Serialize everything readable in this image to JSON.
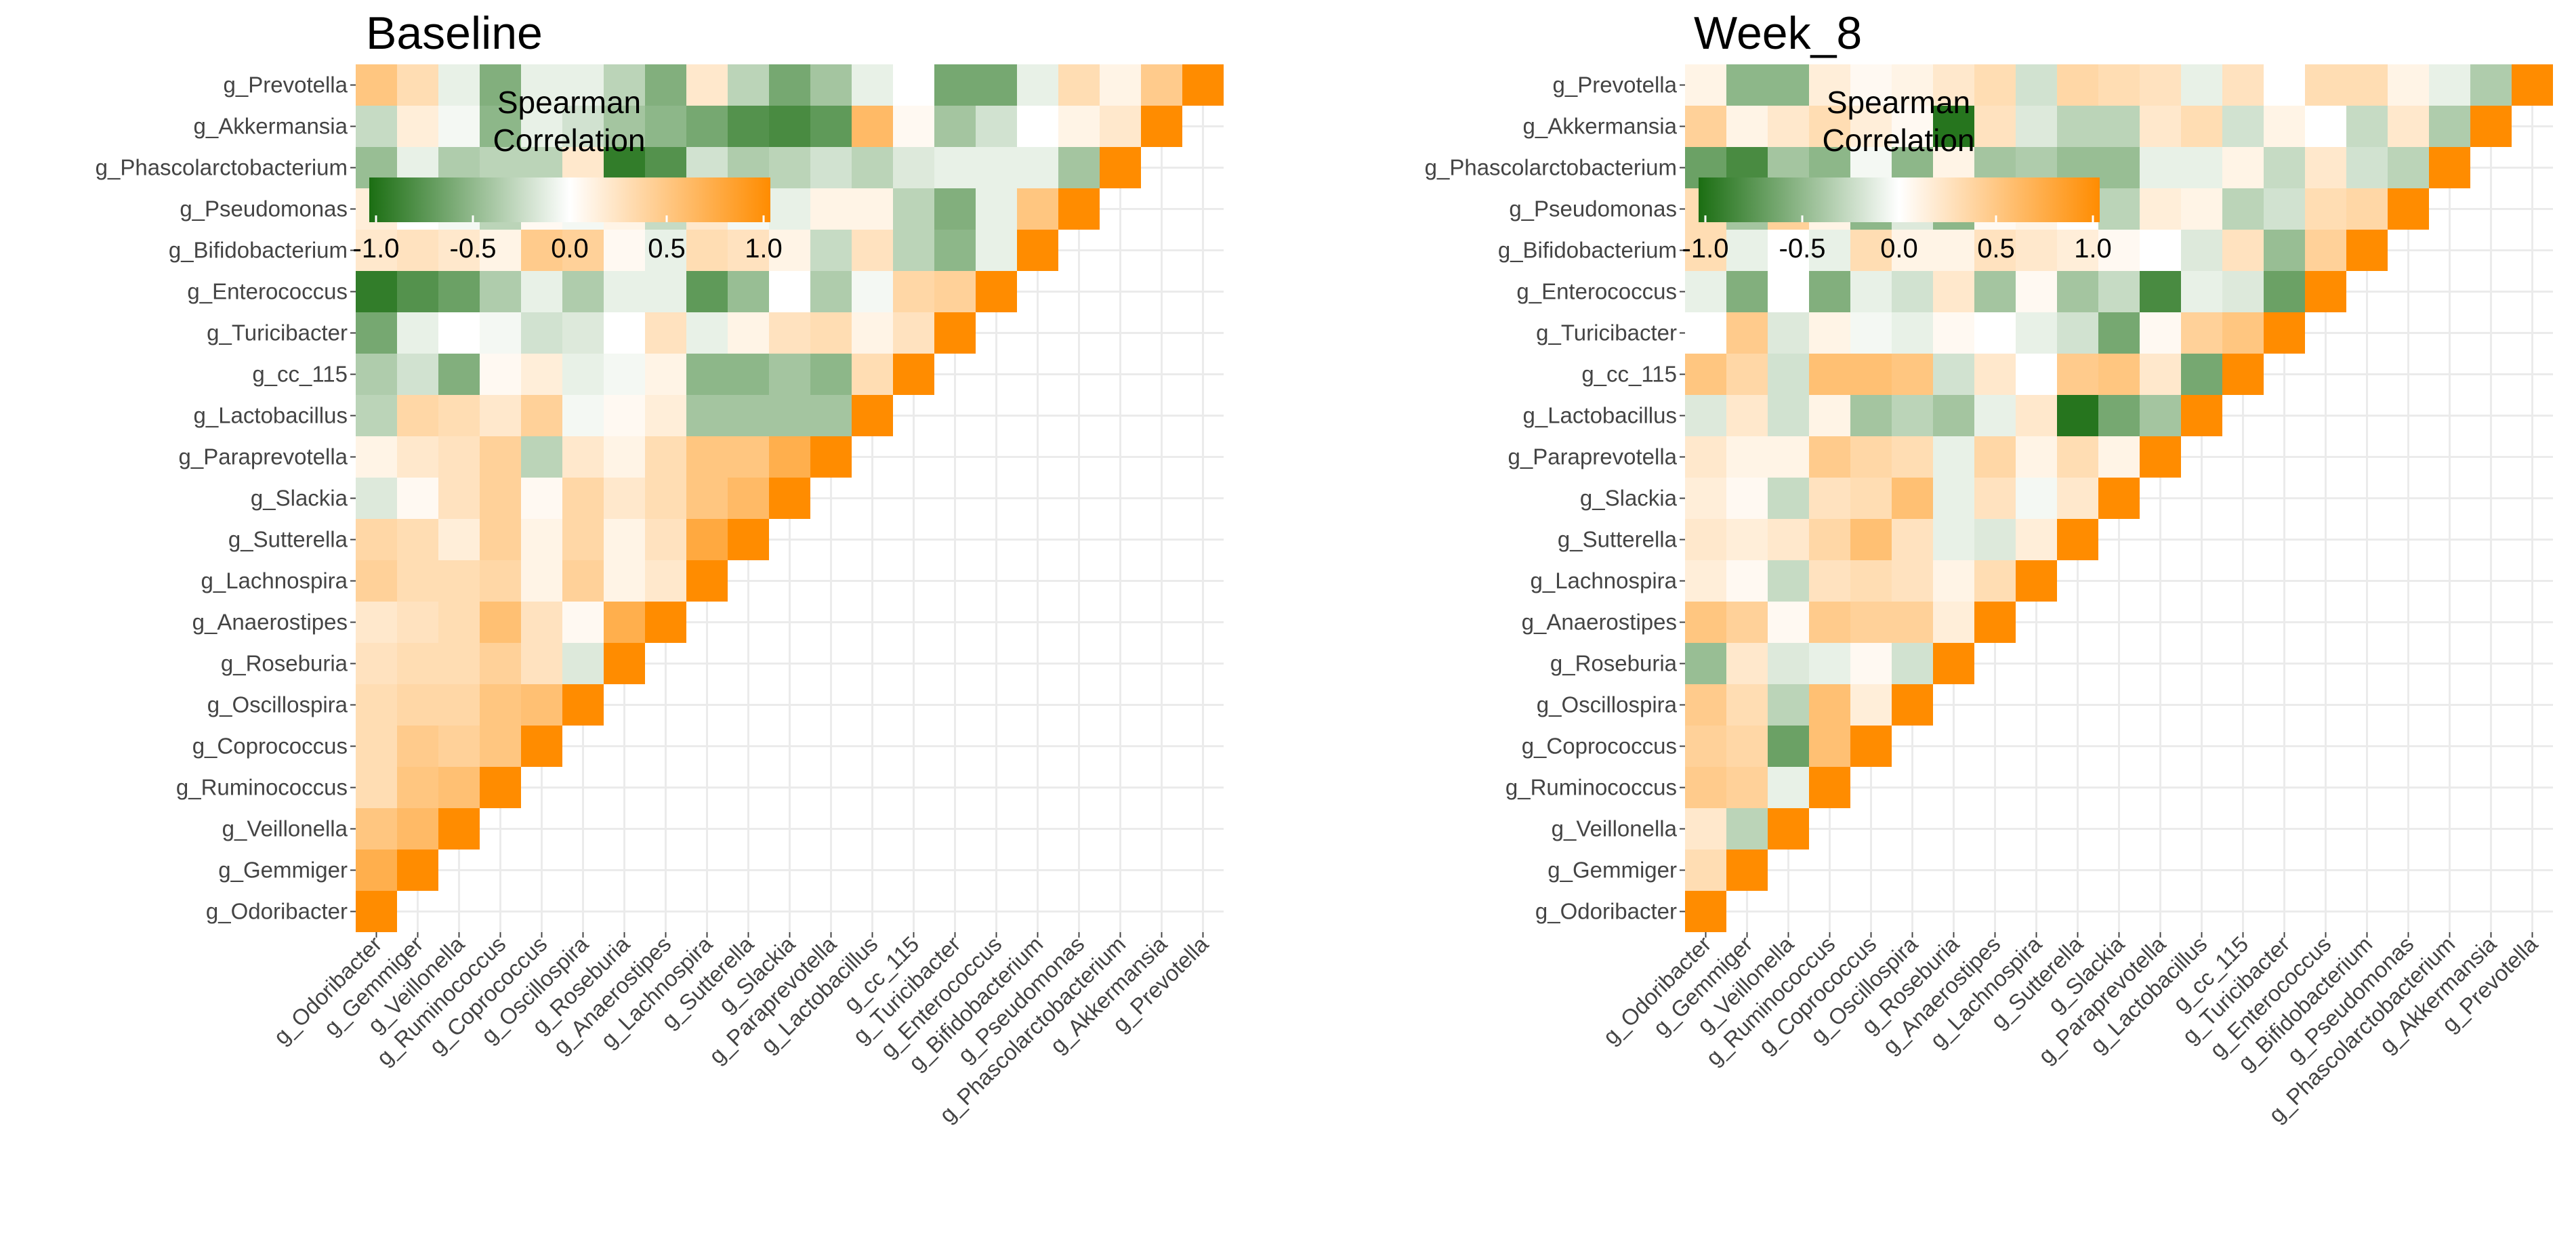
{
  "chart_data": [
    {
      "type": "heatmap",
      "title": "Baseline",
      "legend": {
        "title_lines": [
          "Spearman",
          "Correlation"
        ],
        "ticks": [
          "-1.0",
          "-0.5",
          "0.0",
          "0.5",
          "1.0"
        ],
        "range": [
          -1,
          1
        ],
        "colors": {
          "low": "#1b6e12",
          "mid": "#ffffff",
          "high": "#ff8c00"
        }
      },
      "rows_top_to_bottom": [
        "g_Prevotella",
        "g_Akkermansia",
        "g_Phascolarctobacterium",
        "g_Pseudomonas",
        "g_Bifidobacterium",
        "g_Enterococcus",
        "g_Turicibacter",
        "g_cc_115",
        "g_Lactobacillus",
        "g_Paraprevotella",
        "g_Slackia",
        "g_Sutterella",
        "g_Lachnospira",
        "g_Anaerostipes",
        "g_Roseburia",
        "g_Oscillospira",
        "g_Coprococcus",
        "g_Ruminococcus",
        "g_Veillonella",
        "g_Gemmiger",
        "g_Odoribacter"
      ],
      "columns": [
        "g_Odoribacter",
        "g_Gemmiger",
        "g_Veillonella",
        "g_Ruminococcus",
        "g_Coprococcus",
        "g_Oscillospira",
        "g_Roseburia",
        "g_Anaerostipes",
        "g_Lachnospira",
        "g_Sutterella",
        "g_Slackia",
        "g_Paraprevotella",
        "g_Lactobacillus",
        "g_cc_115",
        "g_Turicibacter",
        "g_Enterococcus",
        "g_Bifidobacterium",
        "g_Pseudomonas",
        "g_Phascolarctobacterium",
        "g_Akkermansia",
        "g_Prevotella"
      ],
      "values_lower_triangle": [
        [
          1.0
        ],
        [
          0.7,
          1.0
        ],
        [
          0.5,
          0.6,
          1.0
        ],
        [
          0.3,
          0.5,
          0.55,
          1.0
        ],
        [
          0.3,
          0.45,
          0.4,
          0.5,
          1.0
        ],
        [
          0.3,
          0.35,
          0.35,
          0.5,
          0.55,
          1.0
        ],
        [
          0.25,
          0.3,
          0.3,
          0.4,
          0.25,
          -0.15,
          1.0
        ],
        [
          0.2,
          0.25,
          0.3,
          0.55,
          0.25,
          0.05,
          0.7,
          1.0
        ],
        [
          0.4,
          0.3,
          0.3,
          0.35,
          0.1,
          0.4,
          0.1,
          0.2,
          1.0
        ],
        [
          0.35,
          0.3,
          0.15,
          0.4,
          0.1,
          0.35,
          0.1,
          0.25,
          0.75,
          1.0
        ],
        [
          -0.15,
          0.05,
          0.25,
          0.4,
          0.05,
          0.35,
          0.2,
          0.3,
          0.5,
          0.6,
          1.0
        ],
        [
          0.1,
          0.2,
          0.25,
          0.4,
          -0.3,
          0.2,
          0.1,
          0.3,
          0.5,
          0.5,
          0.7,
          1.0
        ],
        [
          -0.3,
          0.35,
          0.3,
          0.2,
          0.4,
          -0.05,
          0.05,
          0.15,
          -0.4,
          -0.4,
          -0.4,
          -0.4,
          1.0
        ],
        [
          -0.35,
          -0.2,
          -0.55,
          0.05,
          0.15,
          -0.1,
          -0.05,
          0.1,
          -0.5,
          -0.5,
          -0.4,
          -0.5,
          0.3,
          1.0
        ],
        [
          -0.6,
          -0.1,
          0.0,
          -0.05,
          -0.2,
          -0.15,
          0.0,
          0.25,
          -0.1,
          0.1,
          0.25,
          0.3,
          0.1,
          0.25,
          1.0
        ],
        [
          -0.9,
          -0.75,
          -0.65,
          -0.35,
          -0.1,
          -0.35,
          -0.1,
          -0.1,
          -0.7,
          -0.45,
          0.0,
          -0.35,
          -0.05,
          0.35,
          0.4,
          1.0
        ],
        [
          0.2,
          0.25,
          0.2,
          0.1,
          0.45,
          0.4,
          0.05,
          -0.1,
          0.3,
          0.25,
          0.1,
          -0.25,
          0.25,
          -0.3,
          -0.5,
          -0.1,
          1.0
        ],
        [
          0.15,
          0.0,
          -0.05,
          -0.3,
          0.05,
          -0.05,
          0.1,
          -0.25,
          0.2,
          -0.05,
          -0.1,
          0.1,
          0.1,
          -0.3,
          -0.55,
          -0.1,
          0.5,
          1.0
        ],
        [
          -0.45,
          -0.1,
          -0.35,
          -0.3,
          -0.3,
          0.2,
          -0.9,
          -0.75,
          -0.2,
          -0.35,
          -0.3,
          -0.2,
          -0.3,
          -0.15,
          -0.1,
          -0.1,
          -0.1,
          -0.4,
          1.0
        ],
        [
          -0.25,
          0.15,
          -0.05,
          -0.5,
          -0.1,
          -0.2,
          -0.4,
          -0.5,
          -0.6,
          -0.75,
          -0.8,
          -0.7,
          0.6,
          0.05,
          -0.4,
          -0.2,
          0.0,
          0.1,
          0.2,
          1.0
        ],
        [
          0.5,
          0.3,
          -0.1,
          -0.55,
          -0.1,
          -0.1,
          -0.3,
          -0.55,
          0.2,
          -0.3,
          -0.6,
          -0.4,
          -0.1,
          0.0,
          -0.6,
          -0.6,
          -0.1,
          0.3,
          0.1,
          0.45,
          1.0
        ]
      ]
    },
    {
      "type": "heatmap",
      "title": "Week_8",
      "legend": {
        "title_lines": [
          "Spearman",
          "Correlation"
        ],
        "ticks": [
          "-1.0",
          "-0.5",
          "0.0",
          "0.5",
          "1.0"
        ],
        "range": [
          -1,
          1
        ],
        "colors": {
          "low": "#1b6e12",
          "mid": "#ffffff",
          "high": "#ff8c00"
        }
      },
      "rows_top_to_bottom": [
        "g_Prevotella",
        "g_Akkermansia",
        "g_Phascolarctobacterium",
        "g_Pseudomonas",
        "g_Bifidobacterium",
        "g_Enterococcus",
        "g_Turicibacter",
        "g_cc_115",
        "g_Lactobacillus",
        "g_Paraprevotella",
        "g_Slackia",
        "g_Sutterella",
        "g_Lachnospira",
        "g_Anaerostipes",
        "g_Roseburia",
        "g_Oscillospira",
        "g_Coprococcus",
        "g_Ruminococcus",
        "g_Veillonella",
        "g_Gemmiger",
        "g_Odoribacter"
      ],
      "columns": [
        "g_Odoribacter",
        "g_Gemmiger",
        "g_Veillonella",
        "g_Ruminococcus",
        "g_Coprococcus",
        "g_Oscillospira",
        "g_Roseburia",
        "g_Anaerostipes",
        "g_Lachnospira",
        "g_Sutterella",
        "g_Slackia",
        "g_Paraprevotella",
        "g_Lactobacillus",
        "g_cc_115",
        "g_Turicibacter",
        "g_Enterococcus",
        "g_Bifidobacterium",
        "g_Pseudomonas",
        "g_Phascolarctobacterium",
        "g_Akkermansia",
        "g_Prevotella"
      ],
      "values_lower_triangle": [
        [
          1.0
        ],
        [
          0.3,
          1.0
        ],
        [
          0.2,
          -0.3,
          1.0
        ],
        [
          0.45,
          0.4,
          -0.1,
          1.0
        ],
        [
          0.4,
          0.35,
          -0.65,
          0.55,
          1.0
        ],
        [
          0.45,
          0.3,
          -0.3,
          0.55,
          0.15,
          1.0
        ],
        [
          -0.45,
          0.2,
          -0.15,
          -0.1,
          0.05,
          -0.2,
          1.0
        ],
        [
          0.5,
          0.4,
          0.05,
          0.45,
          0.4,
          0.4,
          0.15,
          1.0
        ],
        [
          0.15,
          0.05,
          -0.25,
          0.25,
          0.3,
          0.25,
          0.1,
          0.3,
          1.0
        ],
        [
          0.2,
          0.15,
          0.2,
          0.35,
          0.55,
          0.25,
          -0.1,
          -0.15,
          0.15,
          1.0
        ],
        [
          0.15,
          0.05,
          -0.25,
          0.25,
          0.3,
          0.55,
          -0.1,
          0.25,
          -0.05,
          0.2,
          1.0
        ],
        [
          0.2,
          0.1,
          0.1,
          0.45,
          0.35,
          0.3,
          -0.1,
          0.35,
          0.1,
          0.3,
          0.1,
          1.0
        ],
        [
          -0.15,
          0.2,
          -0.2,
          0.1,
          -0.4,
          -0.3,
          -0.4,
          -0.1,
          0.2,
          -0.95,
          -0.6,
          -0.4,
          1.0
        ],
        [
          0.5,
          0.35,
          -0.2,
          0.55,
          0.55,
          0.5,
          -0.2,
          0.2,
          0.0,
          0.45,
          0.5,
          0.2,
          -0.6,
          1.0
        ],
        [
          0.0,
          0.45,
          -0.15,
          0.1,
          -0.05,
          -0.1,
          0.05,
          0.0,
          -0.1,
          -0.2,
          -0.6,
          0.05,
          0.4,
          0.5,
          1.0
        ],
        [
          -0.1,
          -0.55,
          0.0,
          -0.55,
          -0.1,
          -0.2,
          0.2,
          -0.4,
          0.05,
          -0.4,
          -0.25,
          -0.8,
          -0.1,
          -0.15,
          -0.65,
          1.0
        ],
        [
          0.3,
          -0.1,
          0.0,
          -0.1,
          0.3,
          0.1,
          0.1,
          0.25,
          0.2,
          0.15,
          0.05,
          0.0,
          -0.15,
          0.25,
          -0.45,
          0.4,
          1.0
        ],
        [
          0.3,
          -0.4,
          0.4,
          0.1,
          -0.5,
          -0.15,
          -0.5,
          0.05,
          0.1,
          0.0,
          -0.3,
          0.15,
          0.1,
          -0.3,
          -0.2,
          0.3,
          0.35,
          1.0
        ],
        [
          -0.65,
          -0.8,
          -0.4,
          -0.5,
          -0.05,
          -0.5,
          0.1,
          -0.4,
          -0.35,
          -0.45,
          -0.45,
          -0.1,
          -0.1,
          0.1,
          -0.25,
          0.2,
          -0.2,
          -0.3,
          1.0
        ],
        [
          0.4,
          0.1,
          0.2,
          0.3,
          0.15,
          0.05,
          -0.95,
          0.25,
          -0.15,
          -0.3,
          -0.3,
          0.2,
          0.3,
          -0.2,
          0.1,
          0.0,
          -0.25,
          0.2,
          -0.35,
          1.0
        ],
        [
          0.1,
          -0.5,
          -0.5,
          0.15,
          0.05,
          0.1,
          0.2,
          0.3,
          -0.2,
          0.35,
          0.3,
          0.25,
          -0.1,
          0.25,
          0.0,
          0.3,
          0.3,
          0.1,
          -0.1,
          -0.35,
          1.0
        ]
      ]
    }
  ]
}
